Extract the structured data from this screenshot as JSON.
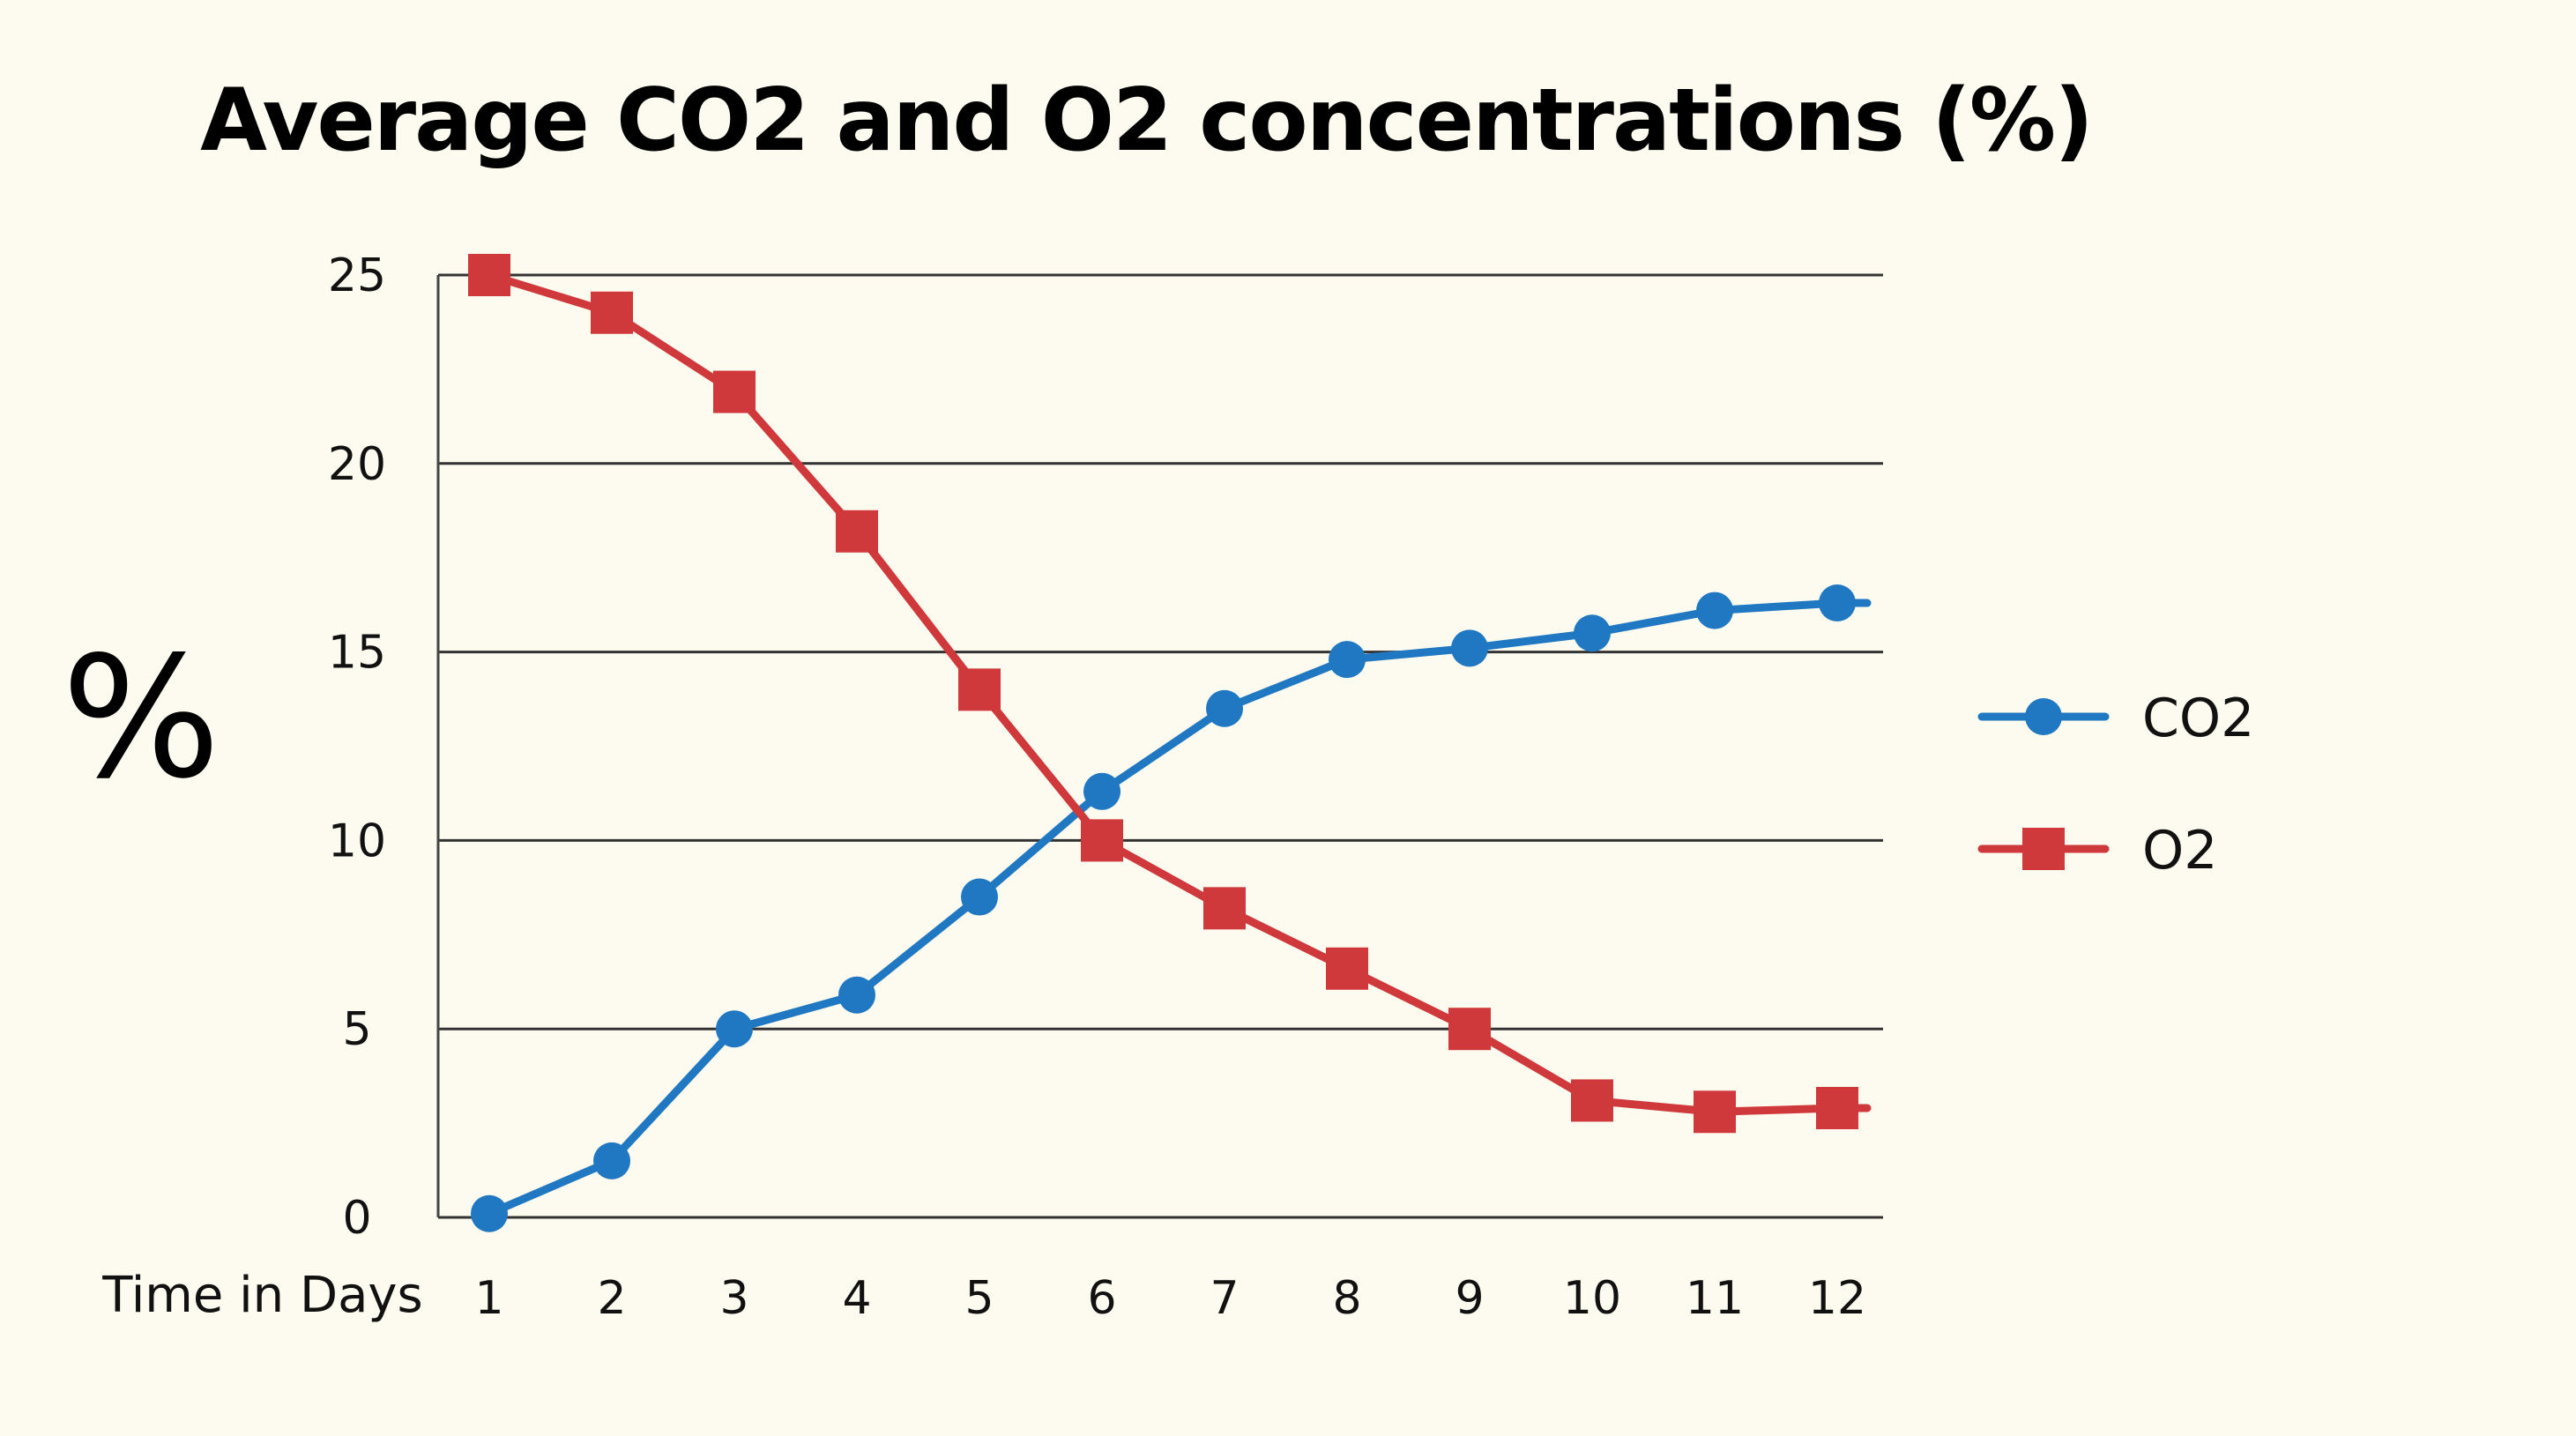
{
  "chart_data": {
    "type": "line",
    "title": "Average CO2 and O2 concentrations (%)",
    "xlabel": "Time in Days",
    "ylabel": "%",
    "categories": [
      "1",
      "2",
      "3",
      "4",
      "5",
      "6",
      "7",
      "8",
      "9",
      "10",
      "11",
      "12"
    ],
    "y_ticks": [
      "0",
      "5",
      "10",
      "15",
      "20",
      "25"
    ],
    "ylim": [
      0,
      25
    ],
    "grid": true,
    "legend_position": "right",
    "series": [
      {
        "name": "CO2",
        "color": "#1f78c1",
        "marker": "circle",
        "values": [
          0.1,
          1.5,
          5.0,
          5.9,
          8.5,
          11.3,
          13.5,
          14.8,
          15.1,
          15.5,
          16.1,
          16.3
        ]
      },
      {
        "name": "O2",
        "color": "#d0393b",
        "marker": "square",
        "values": [
          25.0,
          24.0,
          21.9,
          18.2,
          14.0,
          10.0,
          8.2,
          6.6,
          5.0,
          3.1,
          2.8,
          2.9
        ]
      }
    ]
  }
}
